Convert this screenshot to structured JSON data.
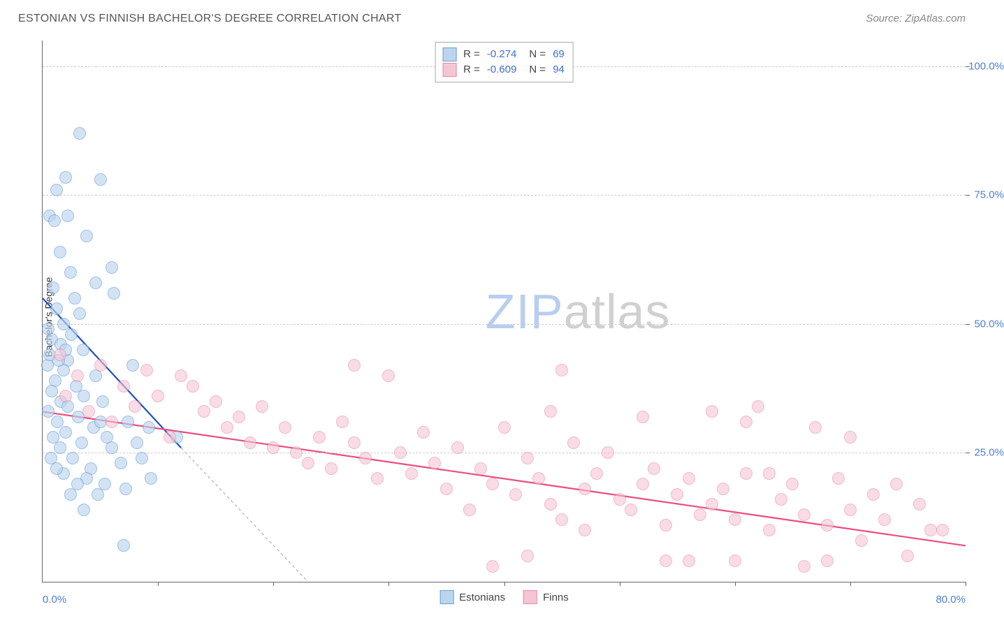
{
  "title": "ESTONIAN VS FINNISH BACHELOR'S DEGREE CORRELATION CHART",
  "source": "Source: ZipAtlas.com",
  "y_axis_title": "Bachelor's Degree",
  "watermark_zip": "ZIP",
  "watermark_atlas": "atlas",
  "watermark_color_zip": "#b8cef0",
  "watermark_color_atlas": "#d0d0d0",
  "colors": {
    "axis_label": "#4a7fd6",
    "grid": "#cccccc",
    "title": "#555555"
  },
  "x_axis": {
    "min": 0,
    "max": 80,
    "min_label": "0.0%",
    "max_label": "80.0%",
    "tick_step": 10
  },
  "y_axis": {
    "min": 0,
    "max": 105,
    "ticks": [
      {
        "value": 25,
        "label": "25.0%"
      },
      {
        "value": 50,
        "label": "50.0%"
      },
      {
        "value": 75,
        "label": "75.0%"
      },
      {
        "value": 100,
        "label": "100.0%"
      }
    ]
  },
  "series": [
    {
      "key": "estonians",
      "label": "Estonians",
      "fill": "#bcd5ef",
      "stroke": "#6a9fd8",
      "fill_opacity": 0.65,
      "marker_radius": 9,
      "trend": {
        "x1": 0,
        "y1": 55,
        "x2": 12,
        "y2": 26,
        "color": "#1d4fbf",
        "width": 2.2
      },
      "trend_dash": {
        "x1": 12,
        "y1": 26,
        "x2": 23,
        "y2": 0,
        "color": "#9aa2b1",
        "width": 1
      },
      "stat_R": "-0.274",
      "stat_N": "69",
      "points": [
        [
          3.2,
          87
        ],
        [
          5,
          78
        ],
        [
          2,
          78.5
        ],
        [
          1.2,
          76
        ],
        [
          0.6,
          71
        ],
        [
          2.2,
          71
        ],
        [
          1,
          70
        ],
        [
          3.8,
          67
        ],
        [
          1.5,
          64
        ],
        [
          2.4,
          60
        ],
        [
          6,
          61
        ],
        [
          4.6,
          58
        ],
        [
          0.9,
          57
        ],
        [
          2.8,
          55
        ],
        [
          6.2,
          56
        ],
        [
          1.2,
          53
        ],
        [
          3.2,
          52
        ],
        [
          1.8,
          50
        ],
        [
          0.5,
          49
        ],
        [
          2.5,
          48
        ],
        [
          0.8,
          47
        ],
        [
          1.6,
          46
        ],
        [
          3.5,
          45
        ],
        [
          2.2,
          43
        ],
        [
          0.4,
          42
        ],
        [
          1.8,
          41
        ],
        [
          4.6,
          40
        ],
        [
          7.8,
          42
        ],
        [
          1.1,
          39
        ],
        [
          2.9,
          38
        ],
        [
          0.8,
          37
        ],
        [
          3.6,
          36
        ],
        [
          1.6,
          35
        ],
        [
          5.2,
          35
        ],
        [
          2.2,
          34
        ],
        [
          0.5,
          33
        ],
        [
          3.1,
          32
        ],
        [
          1.3,
          31
        ],
        [
          4.4,
          30
        ],
        [
          7.4,
          31
        ],
        [
          2.0,
          29
        ],
        [
          0.9,
          28
        ],
        [
          5.6,
          28
        ],
        [
          9.2,
          30
        ],
        [
          3.4,
          27
        ],
        [
          1.5,
          26
        ],
        [
          11.6,
          28
        ],
        [
          2.6,
          24
        ],
        [
          6.8,
          23
        ],
        [
          4.2,
          22
        ],
        [
          8.6,
          24
        ],
        [
          1.8,
          21
        ],
        [
          3.8,
          20
        ],
        [
          5.4,
          19
        ],
        [
          7.2,
          18
        ],
        [
          2.4,
          17
        ],
        [
          4.8,
          17
        ],
        [
          9.4,
          20
        ],
        [
          1.2,
          22
        ],
        [
          0.7,
          24
        ],
        [
          3.0,
          19
        ],
        [
          6.0,
          26
        ],
        [
          8.2,
          27
        ],
        [
          5.0,
          31
        ],
        [
          2.0,
          45
        ],
        [
          0.6,
          44
        ],
        [
          1.4,
          43
        ],
        [
          7.0,
          7
        ],
        [
          3.6,
          14
        ]
      ]
    },
    {
      "key": "finns",
      "label": "Finns",
      "fill": "#f6c5d4",
      "stroke": "#e98aa8",
      "fill_opacity": 0.6,
      "marker_radius": 9,
      "trend": {
        "x1": 0,
        "y1": 33,
        "x2": 80,
        "y2": 7,
        "color": "#ea4d7d",
        "width": 2.2
      },
      "stat_R": "-0.609",
      "stat_N": "94",
      "points": [
        [
          1.5,
          44
        ],
        [
          3,
          40
        ],
        [
          5,
          42
        ],
        [
          7,
          38
        ],
        [
          9,
          41
        ],
        [
          12,
          40
        ],
        [
          10,
          36
        ],
        [
          13,
          38
        ],
        [
          15,
          35
        ],
        [
          16,
          30
        ],
        [
          14,
          33
        ],
        [
          8,
          34
        ],
        [
          6,
          31
        ],
        [
          4,
          33
        ],
        [
          2,
          36
        ],
        [
          11,
          28
        ],
        [
          17,
          32
        ],
        [
          18,
          27
        ],
        [
          19,
          34
        ],
        [
          20,
          26
        ],
        [
          21,
          30
        ],
        [
          22,
          25
        ],
        [
          23,
          23
        ],
        [
          24,
          28
        ],
        [
          25,
          22
        ],
        [
          26,
          31
        ],
        [
          27,
          27
        ],
        [
          28,
          24
        ],
        [
          27,
          42
        ],
        [
          29,
          20
        ],
        [
          30,
          40
        ],
        [
          31,
          25
        ],
        [
          32,
          21
        ],
        [
          33,
          29
        ],
        [
          34,
          23
        ],
        [
          35,
          18
        ],
        [
          36,
          26
        ],
        [
          37,
          14
        ],
        [
          38,
          22
        ],
        [
          39,
          19
        ],
        [
          40,
          30
        ],
        [
          41,
          17
        ],
        [
          42,
          24
        ],
        [
          43,
          20
        ],
        [
          44,
          15
        ],
        [
          45,
          12
        ],
        [
          45,
          41
        ],
        [
          46,
          27
        ],
        [
          47,
          18
        ],
        [
          48,
          21
        ],
        [
          49,
          25
        ],
        [
          50,
          16
        ],
        [
          51,
          14
        ],
        [
          52,
          19
        ],
        [
          53,
          22
        ],
        [
          54,
          11
        ],
        [
          55,
          17
        ],
        [
          56,
          20
        ],
        [
          57,
          13
        ],
        [
          58,
          15
        ],
        [
          59,
          18
        ],
        [
          60,
          12
        ],
        [
          61,
          21
        ],
        [
          61,
          31
        ],
        [
          62,
          34
        ],
        [
          63,
          10
        ],
        [
          64,
          16
        ],
        [
          65,
          19
        ],
        [
          66,
          13
        ],
        [
          66,
          3
        ],
        [
          67,
          30
        ],
        [
          68,
          11
        ],
        [
          69,
          20
        ],
        [
          70,
          14
        ],
        [
          71,
          8
        ],
        [
          72,
          17
        ],
        [
          73,
          12
        ],
        [
          74,
          19
        ],
        [
          75,
          5
        ],
        [
          76,
          15
        ],
        [
          77,
          10
        ],
        [
          68,
          4
        ],
        [
          60,
          4
        ],
        [
          54,
          4
        ],
        [
          42,
          5
        ],
        [
          39,
          3
        ],
        [
          63,
          21
        ],
        [
          58,
          33
        ],
        [
          52,
          32
        ],
        [
          47,
          10
        ],
        [
          70,
          28
        ],
        [
          56,
          4
        ],
        [
          44,
          33
        ],
        [
          78,
          10
        ]
      ]
    }
  ]
}
